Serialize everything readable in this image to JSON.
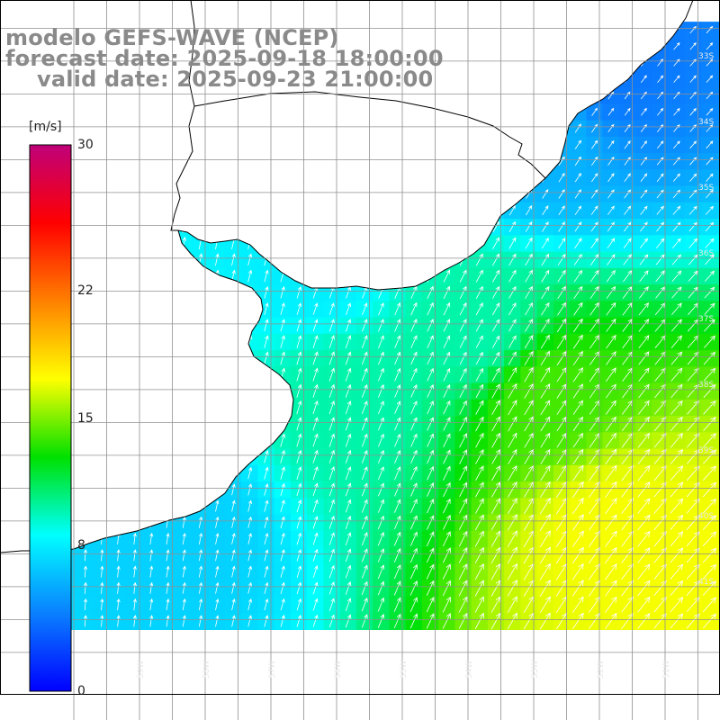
{
  "title": {
    "model": "modelo GEFS-WAVE (NCEP)",
    "forecast": "forecast date: 2025-09-18 18:00:00",
    "valid": "valid date: 2025-09-23 21:00:00"
  },
  "colorbar": {
    "unit": "[m/s]",
    "min": 0,
    "max": 30,
    "ticks": [
      {
        "value": 30,
        "label": "30"
      },
      {
        "value": 22,
        "label": "22"
      },
      {
        "value": 15,
        "label": "15"
      },
      {
        "value": 8,
        "label": "8"
      },
      {
        "value": 0,
        "label": "0"
      }
    ],
    "stops": [
      "#0000ff",
      "#0a80ff",
      "#00ffff",
      "#00e000",
      "#ffff00",
      "#ff8000",
      "#ff0000",
      "#c0007a"
    ]
  },
  "map": {
    "variable": "wind speed",
    "land_color": "#ffffff",
    "coastline_color": "#000000",
    "grid_color": "#909090",
    "arrow_color": "#ffffff",
    "lat_labels": [
      "33S",
      "34S",
      "35S",
      "36S",
      "37S",
      "38S",
      "39S",
      "40S",
      "41S"
    ],
    "lon_labels": [
      "59W",
      "58W",
      "57W",
      "56W",
      "55W",
      "54W",
      "53W",
      "52W",
      "51W"
    ],
    "wind_field_samples": [
      {
        "lon": -56.5,
        "lat": -36.0,
        "speed_ms": 8
      },
      {
        "lon": -56.0,
        "lat": -38.0,
        "speed_ms": 10
      },
      {
        "lon": -54.0,
        "lat": -37.0,
        "speed_ms": 10
      },
      {
        "lon": -53.0,
        "lat": -34.0,
        "speed_ms": 6
      },
      {
        "lon": -52.0,
        "lat": -33.0,
        "speed_ms": 4
      },
      {
        "lon": -53.0,
        "lat": -38.0,
        "speed_ms": 14
      },
      {
        "lon": -52.0,
        "lat": -40.0,
        "speed_ms": 17
      },
      {
        "lon": -51.0,
        "lat": -40.5,
        "speed_ms": 17
      },
      {
        "lon": -58.5,
        "lat": -40.0,
        "speed_ms": 7
      }
    ]
  }
}
